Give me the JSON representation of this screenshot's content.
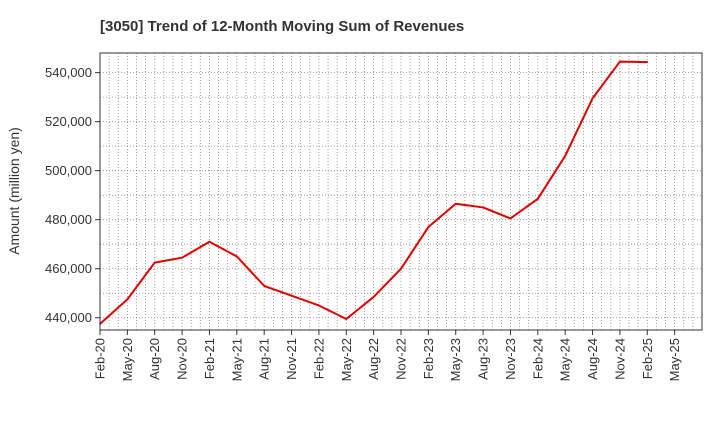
{
  "chart_data": {
    "type": "line",
    "title": "[3050]  Trend of 12-Month Moving Sum of Revenues",
    "xlabel": "",
    "ylabel": "Amount (million yen)",
    "ylim": [
      435000,
      548000
    ],
    "grid": true,
    "x_ticks": [
      "Feb-20",
      "May-20",
      "Aug-20",
      "Nov-20",
      "Feb-21",
      "May-21",
      "Aug-21",
      "Nov-21",
      "Feb-22",
      "May-22",
      "Aug-22",
      "Nov-22",
      "Feb-23",
      "May-23",
      "Aug-23",
      "Nov-23",
      "Feb-24",
      "May-24",
      "Aug-24",
      "Nov-24",
      "Feb-25",
      "May-25"
    ],
    "y_ticks": [
      440000,
      460000,
      480000,
      500000,
      520000,
      540000
    ],
    "y_tick_labels": [
      "440,000",
      "460,000",
      "480,000",
      "500,000",
      "520,000",
      "540,000"
    ],
    "x": [
      "Feb-20",
      "May-20",
      "Aug-20",
      "Nov-20",
      "Feb-21",
      "May-21",
      "Aug-21",
      "Nov-21",
      "Feb-22",
      "May-22",
      "Aug-22",
      "Nov-22",
      "Feb-23",
      "May-23",
      "Aug-23",
      "Nov-23",
      "Feb-24",
      "May-24",
      "Aug-24",
      "Nov-24",
      "Feb-25"
    ],
    "series": [
      {
        "color": "#e00000",
        "values": [
          437500,
          447500,
          462500,
          464500,
          471000,
          465000,
          453000,
          449000,
          445000,
          439500,
          448500,
          460000,
          477000,
          486500,
          485000,
          480500,
          488500,
          506000,
          529500,
          544500,
          544300
        ]
      }
    ],
    "colors": {
      "line": "#e00000",
      "grid": "#888888",
      "axis": "#333333"
    }
  }
}
